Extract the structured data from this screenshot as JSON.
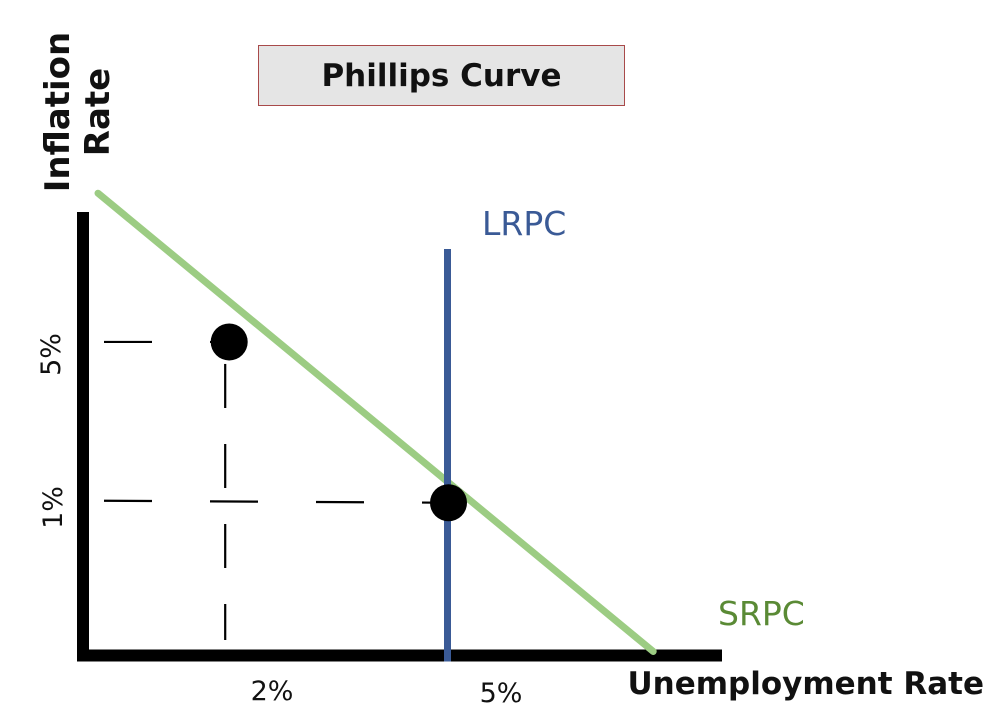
{
  "chart_data": {
    "type": "line",
    "title": "Phillips Curve",
    "xlabel": "Unemployment Rate",
    "ylabel": "Inflation\nRate",
    "x_ticks": [
      "2%",
      "5%"
    ],
    "y_ticks": [
      "5%",
      "1%"
    ],
    "series": [
      {
        "name": "SRPC",
        "color": "#9ccc83",
        "label_color": "#5a8a35",
        "points": [
          {
            "x": 0,
            "y": 8.7
          },
          {
            "x": 2,
            "y": 5
          },
          {
            "x": 5,
            "y": 1
          },
          {
            "x": 7.8,
            "y": -2.7
          }
        ]
      },
      {
        "name": "LRPC",
        "color": "#3a5a96",
        "label_color": "#3a5a96",
        "x": 5
      }
    ],
    "highlight_points": [
      {
        "x": 2,
        "y": 5
      },
      {
        "x": 5,
        "y": 1
      }
    ],
    "xlim": [
      0,
      8
    ],
    "ylim": [
      -2.8,
      9.5
    ],
    "grid": false,
    "legend": "none"
  }
}
